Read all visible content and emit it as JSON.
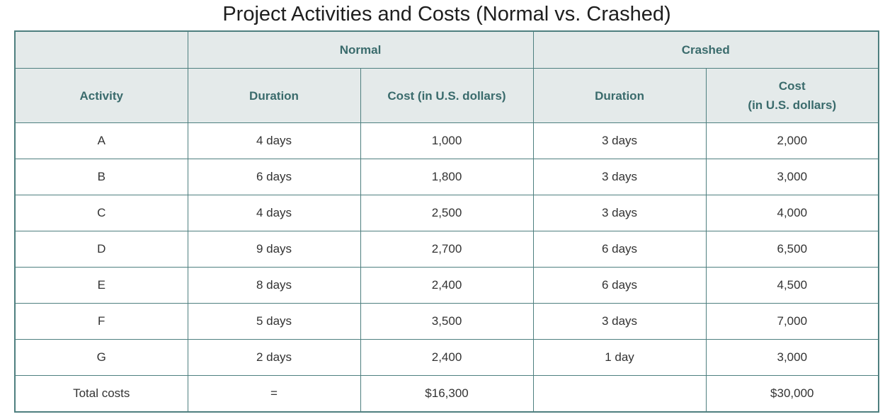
{
  "title": "Project Activities and Costs (Normal vs. Crashed)",
  "table": {
    "group_headers": {
      "blank": "",
      "normal": "Normal",
      "crashed": "Crashed"
    },
    "column_headers": {
      "activity": "Activity",
      "normal_duration": "Duration",
      "normal_cost": "Cost (in U.S. dollars)",
      "crashed_duration": "Duration",
      "crashed_cost_line1": "Cost",
      "crashed_cost_line2": "(in U.S. dollars)"
    },
    "rows": [
      {
        "activity": "A",
        "normal_duration": "4 days",
        "normal_cost": "1,000",
        "crashed_duration": "3 days",
        "crashed_cost": "2,000"
      },
      {
        "activity": "B",
        "normal_duration": "6 days",
        "normal_cost": "1,800",
        "crashed_duration": "3 days",
        "crashed_cost": "3,000"
      },
      {
        "activity": "C",
        "normal_duration": "4 days",
        "normal_cost": "2,500",
        "crashed_duration": "3 days",
        "crashed_cost": "4,000"
      },
      {
        "activity": "D",
        "normal_duration": "9 days",
        "normal_cost": "2,700",
        "crashed_duration": "6 days",
        "crashed_cost": "6,500"
      },
      {
        "activity": "E",
        "normal_duration": "8 days",
        "normal_cost": "2,400",
        "crashed_duration": "6 days",
        "crashed_cost": "4,500"
      },
      {
        "activity": "F",
        "normal_duration": "5 days",
        "normal_cost": "3,500",
        "crashed_duration": "3 days",
        "crashed_cost": "7,000"
      },
      {
        "activity": "G",
        "normal_duration": "2 days",
        "normal_cost": "2,400",
        "crashed_duration": "1 day",
        "crashed_cost": "3,000"
      }
    ],
    "totals": {
      "label": "Total costs",
      "normal_duration": "=",
      "normal_cost": "$16,300",
      "crashed_duration": "",
      "crashed_cost": "$30,000"
    }
  }
}
